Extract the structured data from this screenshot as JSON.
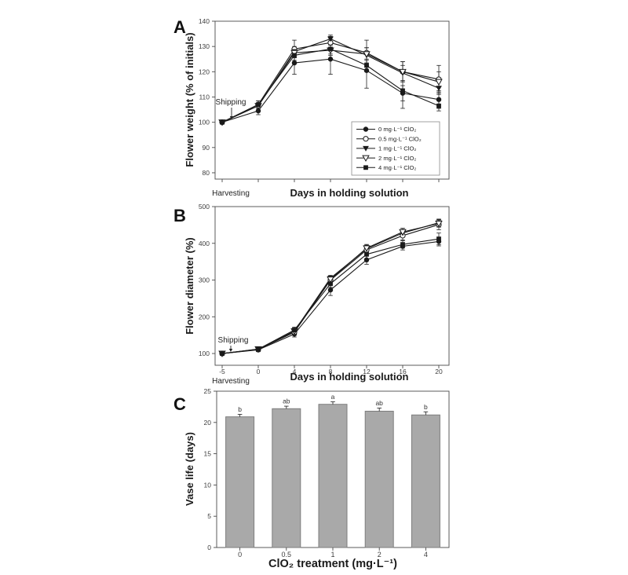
{
  "figure": {
    "background_color": "#ffffff",
    "line_color": "#1a1a1a",
    "axis_color": "#4a4a4a",
    "tick_text_color": "#3d3d3d"
  },
  "chart_data": [
    {
      "panel_label": "A",
      "type": "line",
      "title": "",
      "xlabel": "Days in holding solution",
      "ylabel": "Flower weight (% of initials)",
      "x": [
        -5,
        0,
        4,
        8,
        12,
        16,
        20
      ],
      "x_tick_labels": null,
      "ylim": [
        77.5,
        140
      ],
      "yticks": [
        80,
        90,
        100,
        110,
        120,
        130,
        140
      ],
      "grid": false,
      "legend_position": "lower right",
      "annotations": {
        "shipping": "Shipping",
        "harvesting": "Harvesting"
      },
      "series": [
        {
          "name": "0 mg·L⁻¹ ClO₂",
          "marker": "circle-filled",
          "values": [
            100,
            104.5,
            123.5,
            125,
            120.5,
            111.5,
            109
          ],
          "errors": [
            0.5,
            1.5,
            4.5,
            6,
            7,
            3,
            3.5
          ]
        },
        {
          "name": "0.5 mg·L⁻¹ ClO₂",
          "marker": "circle-open",
          "values": [
            100,
            107,
            129,
            131.5,
            127.5,
            120,
            117
          ],
          "errors": [
            0.5,
            1.5,
            3.5,
            2.5,
            5,
            4,
            5.5
          ]
        },
        {
          "name": "1 mg·L⁻¹ ClO₂",
          "marker": "triangle-down-filled",
          "values": [
            100,
            106.5,
            128,
            133,
            126.5,
            119.5,
            113.5
          ],
          "errors": [
            0.5,
            1,
            2,
            1.5,
            3,
            3,
            2.5
          ]
        },
        {
          "name": "2 mg·L⁻¹ ClO₂",
          "marker": "triangle-down-open",
          "values": [
            100,
            106.5,
            127.5,
            128.5,
            127,
            120,
            116
          ],
          "errors": [
            0.5,
            1,
            2,
            2,
            2.5,
            4,
            4
          ]
        },
        {
          "name": "4 mg·L⁻¹ ClO₂",
          "marker": "square-filled",
          "values": [
            100,
            107,
            126.5,
            129,
            122.5,
            112.5,
            106.5
          ],
          "errors": [
            0.5,
            1.5,
            2,
            2,
            2.5,
            7,
            2
          ]
        }
      ]
    },
    {
      "panel_label": "B",
      "type": "line",
      "title": "",
      "xlabel": "Days in holding solution",
      "ylabel": "Flower diameter (%)",
      "x": [
        -5,
        0,
        4,
        8,
        12,
        16,
        20
      ],
      "x_tick_labels": [
        "-5",
        "0",
        "4",
        "8",
        "12",
        "16",
        "20"
      ],
      "ylim": [
        68,
        500
      ],
      "yticks": [
        100,
        200,
        300,
        400,
        500
      ],
      "grid": false,
      "legend_position": null,
      "annotations": {
        "shipping": "Shipping",
        "harvesting": "Harvesting"
      },
      "series": [
        {
          "name": "0 mg·L⁻¹ ClO₂",
          "marker": "circle-filled",
          "values": [
            100,
            110,
            153,
            273,
            355,
            392,
            405
          ],
          "errors": [
            3,
            5,
            8,
            15,
            12,
            10,
            12
          ]
        },
        {
          "name": "0.5 mg·L⁻¹ ClO₂",
          "marker": "circle-open",
          "values": [
            100,
            111,
            158,
            300,
            382,
            421,
            451
          ],
          "errors": [
            3,
            5,
            8,
            10,
            10,
            12,
            14
          ]
        },
        {
          "name": "1 mg·L⁻¹ ClO₂",
          "marker": "triangle-down-filled",
          "values": [
            100,
            111,
            161,
            305,
            385,
            428,
            456
          ],
          "errors": [
            3,
            5,
            8,
            8,
            10,
            10,
            10
          ]
        },
        {
          "name": "2 mg·L⁻¹ ClO₂",
          "marker": "triangle-down-open",
          "values": [
            100,
            112,
            161,
            302,
            387,
            431,
            454
          ],
          "errors": [
            3,
            5,
            8,
            8,
            10,
            10,
            10
          ]
        },
        {
          "name": "4 mg·L⁻¹ ClO₂",
          "marker": "square-filled",
          "values": [
            100,
            112,
            164,
            290,
            370,
            397,
            412
          ],
          "errors": [
            3,
            5,
            8,
            10,
            12,
            10,
            16
          ]
        }
      ]
    },
    {
      "panel_label": "C",
      "type": "bar",
      "title": "",
      "xlabel": "ClO₂ treatment (mg·L⁻¹)",
      "ylabel": "Vase life (days)",
      "categories": [
        "0",
        "0.5",
        "1",
        "2",
        "4"
      ],
      "values": [
        20.9,
        22.2,
        22.9,
        21.8,
        21.2
      ],
      "errors": [
        0.4,
        0.4,
        0.4,
        0.5,
        0.5
      ],
      "sig_letters": [
        "b",
        "ab",
        "a",
        "ab",
        "b"
      ],
      "ylim": [
        0,
        25
      ],
      "yticks": [
        0,
        5,
        10,
        15,
        20,
        25
      ],
      "grid": false,
      "bar_color": "#a9a9a9",
      "bar_border": "#7d7d7d"
    }
  ]
}
